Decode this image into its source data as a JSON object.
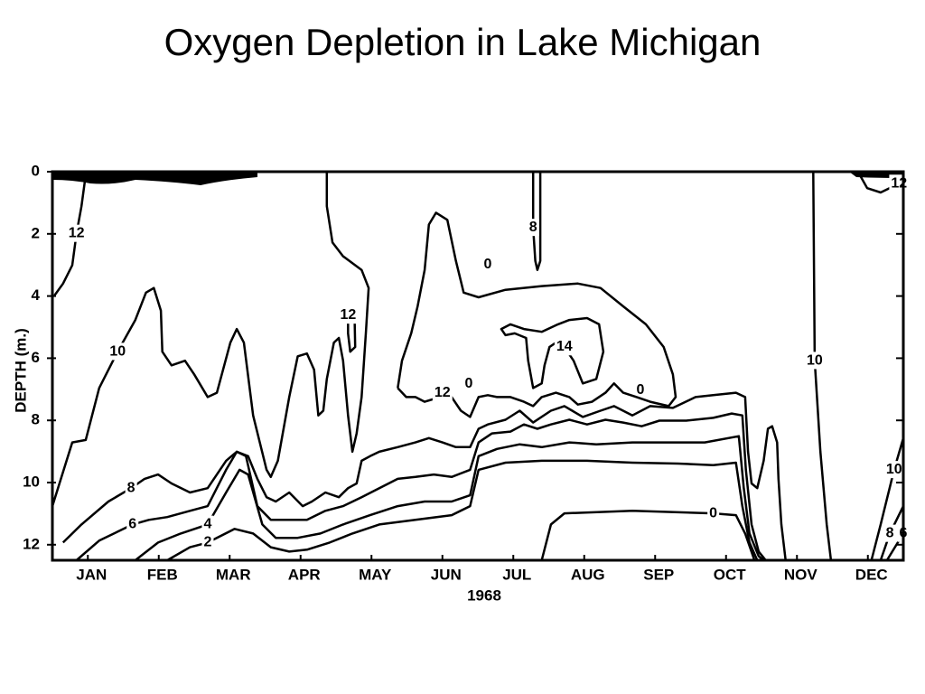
{
  "chart_data": {
    "type": "contour",
    "title": "Oxygen Depletion in Lake Michigan",
    "x_label": "1968",
    "y_label": "DEPTH (m.)",
    "xlim": [
      0,
      12
    ],
    "xticks": [
      {
        "value": 0.5,
        "label": "JAN"
      },
      {
        "value": 1.5,
        "label": "FEB"
      },
      {
        "value": 2.5,
        "label": "MAR"
      },
      {
        "value": 3.5,
        "label": "APR"
      },
      {
        "value": 4.5,
        "label": "MAY"
      },
      {
        "value": 5.5,
        "label": "JUN"
      },
      {
        "value": 6.5,
        "label": "JUL"
      },
      {
        "value": 7.5,
        "label": "AUG"
      },
      {
        "value": 8.5,
        "label": "SEP"
      },
      {
        "value": 9.5,
        "label": "OCT"
      },
      {
        "value": 10.5,
        "label": "NOV"
      },
      {
        "value": 11.5,
        "label": "DEC"
      }
    ],
    "ylim": [
      0,
      12.5
    ],
    "y_reversed": true,
    "yticks": [
      0,
      2,
      4,
      6,
      8,
      10,
      12
    ],
    "color": "#000000",
    "contours": [
      {
        "level": 12,
        "x": [
          0.47,
          0.41,
          0.34,
          0.28,
          0.15,
          0.03
        ],
        "y": [
          0.1,
          1.11,
          1.99,
          3.01,
          3.6,
          3.98
        ]
      },
      {
        "level": 10,
        "x": [
          0,
          0.28,
          0.47,
          0.66,
          0.92,
          1.17,
          1.32,
          1.43,
          1.53,
          1.55,
          1.68,
          1.87,
          2.0,
          2.19,
          2.32,
          2.51,
          2.6,
          2.7,
          2.83,
          3.02,
          3.08,
          3.18,
          3.34,
          3.46,
          3.59,
          3.69,
          3.75,
          3.82,
          3.87,
          3.97,
          4.04,
          4.1,
          4.17,
          4.23,
          4.29,
          4.36,
          4.42,
          4.46,
          4.36,
          4.1,
          3.95,
          3.87,
          3.87
        ],
        "y": [
          10.76,
          8.71,
          8.63,
          6.96,
          5.79,
          4.77,
          3.89,
          3.74,
          4.47,
          5.79,
          6.23,
          6.08,
          6.52,
          7.25,
          7.11,
          5.5,
          5.06,
          5.5,
          7.84,
          9.59,
          9.82,
          9.3,
          7.25,
          5.94,
          5.85,
          6.37,
          7.84,
          7.69,
          6.67,
          5.5,
          5.35,
          6.08,
          7.84,
          9.01,
          8.42,
          7.25,
          5.2,
          3.74,
          3.16,
          2.72,
          2.28,
          1.11,
          0
        ]
      },
      {
        "level": 12,
        "x": [
          4.17,
          4.26,
          4.27,
          4.2,
          4.17,
          4.17
        ],
        "y": [
          4.62,
          4.47,
          5.64,
          5.79,
          5.2,
          4.62
        ]
      },
      {
        "level": 12,
        "x": [
          4.87,
          4.93,
          5.06,
          5.15,
          5.25,
          5.31,
          5.41,
          5.57,
          5.69,
          5.8,
          6.01,
          6.39,
          6.9,
          7.41,
          7.73,
          8.05,
          8.37,
          8.62,
          8.75,
          8.79,
          8.69,
          8.43,
          8.24,
          8.05,
          7.92,
          7.8,
          7.61,
          7.41,
          7.29,
          7.1,
          6.9,
          6.78,
          6.65,
          6.46,
          6.27,
          6.14,
          6.01,
          5.89,
          5.76,
          5.63,
          5.5,
          5.38,
          5.25,
          5.12,
          4.99,
          4.87
        ],
        "y": [
          6.96,
          6.08,
          5.2,
          4.33,
          3.16,
          1.7,
          1.32,
          1.55,
          2.87,
          3.89,
          4.04,
          3.8,
          3.68,
          3.6,
          3.74,
          4.33,
          4.91,
          5.64,
          6.52,
          7.25,
          7.54,
          7.4,
          7.25,
          7.11,
          6.81,
          7.11,
          7.4,
          7.49,
          7.25,
          7.11,
          7.25,
          7.54,
          7.4,
          7.25,
          7.25,
          7.19,
          7.25,
          7.89,
          7.69,
          7.25,
          7.11,
          7.31,
          7.4,
          7.25,
          7.25,
          6.96
        ]
      },
      {
        "level": 14,
        "x": [
          7.13,
          7.29,
          7.54,
          7.71,
          7.77,
          7.67,
          7.48,
          7.35,
          7.22,
          7.1,
          7.01,
          6.94,
          6.9,
          6.78,
          6.71,
          6.68,
          6.52,
          6.39,
          6.33,
          6.46,
          6.65,
          6.9,
          7.13
        ],
        "y": [
          4.91,
          4.77,
          4.71,
          4.91,
          5.79,
          6.67,
          6.81,
          6.08,
          5.64,
          5.5,
          5.64,
          6.23,
          6.81,
          6.96,
          6.08,
          5.35,
          5.2,
          5.26,
          5.06,
          4.91,
          5.06,
          5.15,
          4.91
        ]
      },
      {
        "level": 8,
        "x": [
          6.78,
          6.78,
          6.81,
          6.84,
          6.88,
          6.88
        ],
        "y": [
          0,
          1.8,
          2.87,
          3.16,
          2.87,
          0
        ]
      },
      {
        "level": 8,
        "x": [
          0.15,
          0.41,
          0.79,
          1.11,
          1.3,
          1.49,
          1.68,
          1.94,
          2.19,
          2.45,
          2.6,
          2.76,
          2.89,
          3.02,
          3.15,
          3.34,
          3.53,
          3.66,
          3.85,
          4.04,
          4.17,
          4.29,
          4.36,
          4.48,
          4.61,
          4.87,
          5.12,
          5.31,
          5.5,
          5.69,
          5.89,
          6.01,
          6.14,
          6.39,
          6.59,
          6.78,
          7.03,
          7.22,
          7.48,
          7.73,
          7.92,
          8.18,
          8.43,
          8.75,
          9.07,
          9.32,
          9.64,
          9.77,
          9.81,
          9.86,
          9.94,
          10.03,
          10.09,
          10.15,
          10.22,
          10.24,
          10.28,
          10.34
        ],
        "y": [
          11.93,
          11.35,
          10.61,
          10.18,
          9.88,
          9.74,
          10.03,
          10.32,
          10.18,
          9.3,
          9.01,
          9.15,
          9.88,
          10.47,
          10.61,
          10.32,
          10.76,
          10.61,
          10.32,
          10.47,
          10.18,
          10.03,
          9.3,
          9.15,
          9.01,
          8.86,
          8.71,
          8.57,
          8.71,
          8.86,
          8.86,
          8.27,
          8.13,
          7.98,
          7.69,
          8.07,
          7.69,
          7.54,
          7.89,
          7.69,
          7.54,
          7.84,
          7.54,
          7.6,
          7.25,
          7.19,
          7.11,
          7.25,
          9.01,
          10.03,
          10.18,
          9.3,
          8.27,
          8.19,
          8.71,
          9.88,
          11.35,
          12.5
        ]
      },
      {
        "level": 6,
        "x": [
          0.34,
          0.66,
          0.92,
          1.13,
          1.36,
          1.62,
          1.94,
          2.19,
          2.45,
          2.6,
          2.73,
          2.89,
          3.08,
          3.34,
          3.59,
          3.85,
          4.1,
          4.36,
          4.61,
          4.87,
          5.12,
          5.38,
          5.63,
          5.89,
          6.01,
          6.2,
          6.46,
          6.65,
          6.84,
          7.03,
          7.29,
          7.54,
          7.8,
          8.05,
          8.31,
          8.56,
          8.94,
          9.32,
          9.58,
          9.73,
          9.78,
          9.86,
          9.96,
          10.06
        ],
        "y": [
          12.5,
          11.87,
          11.58,
          11.35,
          11.2,
          11.11,
          10.91,
          10.76,
          9.59,
          9.01,
          9.15,
          10.76,
          11.2,
          11.2,
          11.2,
          10.91,
          10.76,
          10.47,
          10.18,
          9.88,
          9.82,
          9.74,
          9.82,
          9.59,
          8.71,
          8.42,
          8.36,
          8.13,
          8.27,
          8.13,
          7.98,
          8.13,
          7.98,
          8.07,
          8.19,
          8.01,
          8.01,
          7.92,
          7.78,
          7.84,
          9.59,
          11.35,
          12.22,
          12.5
        ]
      },
      {
        "level": 4,
        "x": [
          1.17,
          1.49,
          1.81,
          2.19,
          2.45,
          2.64,
          2.76,
          2.96,
          3.15,
          3.46,
          3.78,
          4.1,
          4.48,
          4.87,
          5.25,
          5.63,
          5.89,
          6.01,
          6.27,
          6.59,
          6.9,
          7.29,
          7.67,
          8.18,
          8.69,
          9.2,
          9.68,
          9.75,
          9.83,
          9.96,
          10.03
        ],
        "y": [
          12.5,
          11.93,
          11.64,
          11.35,
          10.32,
          9.59,
          9.74,
          11.35,
          11.78,
          11.78,
          11.64,
          11.35,
          11.05,
          10.76,
          10.61,
          10.61,
          10.41,
          9.15,
          8.92,
          8.77,
          8.86,
          8.71,
          8.77,
          8.71,
          8.71,
          8.71,
          8.51,
          10.18,
          11.64,
          12.37,
          12.5
        ]
      },
      {
        "level": 2,
        "x": [
          1.62,
          1.94,
          2.19,
          2.57,
          2.83,
          3.08,
          3.34,
          3.59,
          3.91,
          4.23,
          4.61,
          5.12,
          5.63,
          5.89,
          6.01,
          6.39,
          6.9,
          7.54,
          8.18,
          8.82,
          9.32,
          9.64,
          9.73,
          9.83,
          9.94
        ],
        "y": [
          12.5,
          12.08,
          11.93,
          11.49,
          11.64,
          12.08,
          12.22,
          12.16,
          11.93,
          11.64,
          11.35,
          11.2,
          11.05,
          10.76,
          9.59,
          9.36,
          9.3,
          9.3,
          9.36,
          9.39,
          9.44,
          9.36,
          10.76,
          11.93,
          12.5
        ]
      },
      {
        "level": 0,
        "x": [
          6.9,
          7.03,
          7.22,
          8.18,
          9.32,
          9.64,
          9.77,
          9.9
        ],
        "y": [
          12.5,
          11.35,
          10.99,
          10.91,
          10.99,
          11.05,
          11.64,
          12.5
        ]
      },
      {
        "level": 10,
        "x": [
          10.73,
          10.75,
          10.83,
          10.92,
          10.98
        ],
        "y": [
          0,
          6.08,
          9.01,
          11.35,
          12.5
        ]
      },
      {
        "level": 12,
        "x": [
          11.36,
          11.49,
          11.68,
          11.94,
          12
        ],
        "y": [
          0,
          0.53,
          0.67,
          0.38,
          0.23
        ]
      },
      {
        "level": 10,
        "x": [
          11.55,
          11.68,
          11.87,
          12
        ],
        "y": [
          12.5,
          11.35,
          9.59,
          8.57
        ]
      },
      {
        "level": 8,
        "x": [
          11.68,
          11.81,
          12
        ],
        "y": [
          12.5,
          11.64,
          10.76
        ]
      },
      {
        "level": 6,
        "x": [
          11.77,
          12
        ],
        "y": [
          12.5,
          11.64
        ]
      }
    ],
    "annotations": [
      "0",
      "0",
      "0"
    ]
  }
}
